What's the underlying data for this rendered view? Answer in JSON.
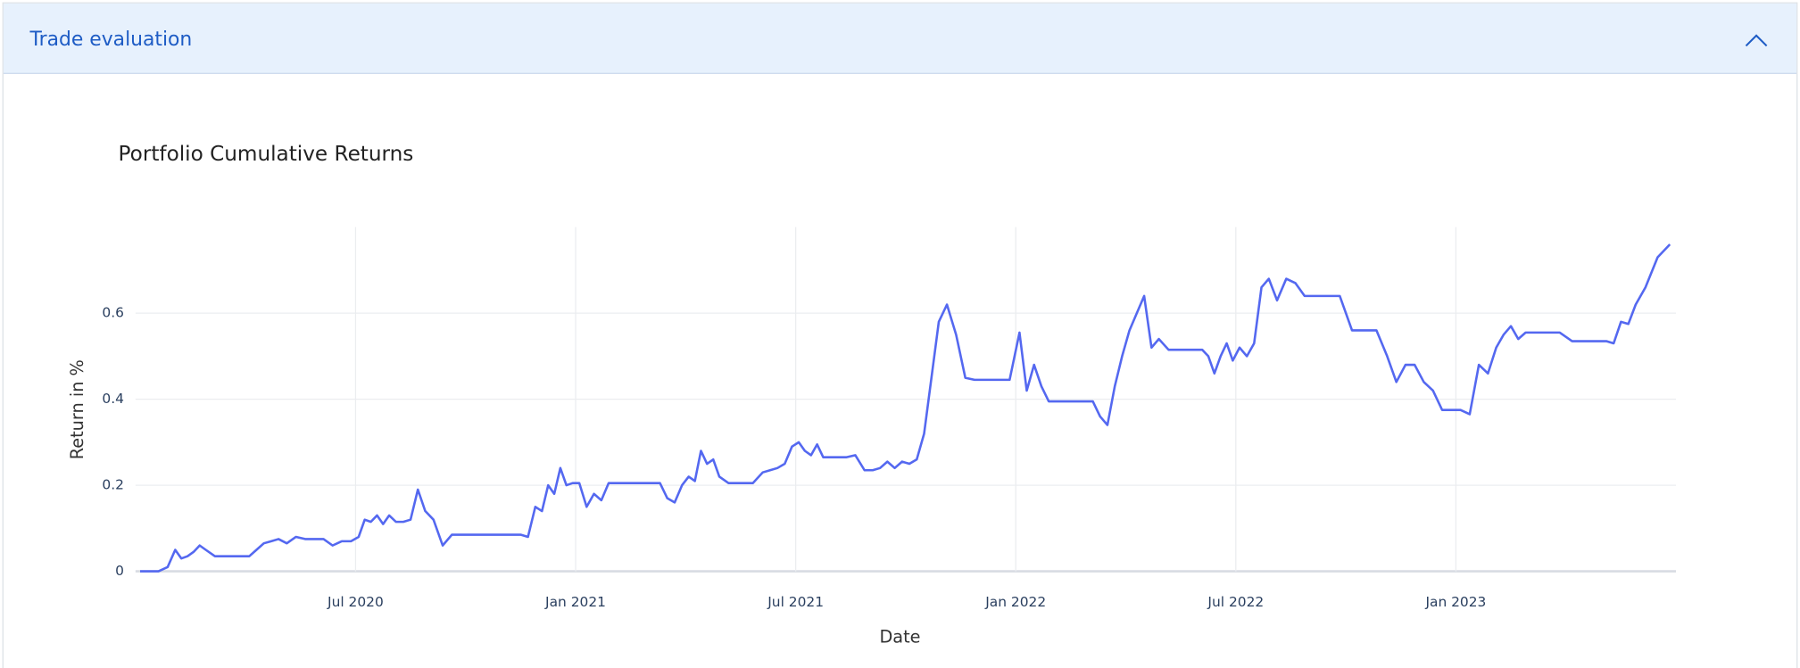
{
  "header": {
    "title": "Trade evaluation"
  },
  "chart_data": {
    "type": "line",
    "title": "Portfolio Cumulative Returns",
    "xlabel": "Date",
    "ylabel": "Return in %",
    "color": "#5468f0",
    "grid": true,
    "xlim": [
      "2020-01",
      "2023-06"
    ],
    "ylim": [
      0,
      0.8
    ],
    "xticks": [
      {
        "value": "2020-07",
        "label": "Jul 2020"
      },
      {
        "value": "2021-01",
        "label": "Jan 2021"
      },
      {
        "value": "2021-07",
        "label": "Jul 2021"
      },
      {
        "value": "2022-01",
        "label": "Jan 2022"
      },
      {
        "value": "2022-07",
        "label": "Jul 2022"
      },
      {
        "value": "2023-01",
        "label": "Jan 2023"
      }
    ],
    "yticks": [
      0,
      0.2,
      0.4,
      0.6
    ],
    "x": [
      "2020-01",
      "2020-01",
      "2020-01",
      "2020-01",
      "2020-02",
      "2020-02",
      "2020-02",
      "2020-02",
      "2020-02",
      "2020-02",
      "2020-03",
      "2020-03",
      "2020-03",
      "2020-04",
      "2020-04",
      "2020-04",
      "2020-04",
      "2020-04",
      "2020-05",
      "2020-05",
      "2020-05",
      "2020-05",
      "2020-06",
      "2020-06",
      "2020-06",
      "2020-06",
      "2020-07",
      "2020-07",
      "2020-07",
      "2020-07",
      "2020-07",
      "2020-07",
      "2020-08",
      "2020-08",
      "2020-08",
      "2020-08",
      "2020-08",
      "2020-09",
      "2020-09",
      "2020-09",
      "2020-09",
      "2020-10",
      "2020-10",
      "2020-10",
      "2020-11",
      "2020-11",
      "2020-11",
      "2020-11",
      "2020-11",
      "2020-12",
      "2020-12",
      "2020-12",
      "2020-12",
      "2020-12",
      "2020-12",
      "2021-01",
      "2021-01",
      "2021-01",
      "2021-01",
      "2021-01",
      "2021-02",
      "2021-02",
      "2021-02",
      "2021-03",
      "2021-03",
      "2021-03",
      "2021-03",
      "2021-03",
      "2021-04",
      "2021-04",
      "2021-04",
      "2021-04",
      "2021-04",
      "2021-04",
      "2021-05",
      "2021-05",
      "2021-05",
      "2021-06",
      "2021-06",
      "2021-06",
      "2021-06",
      "2021-06",
      "2021-07",
      "2021-07",
      "2021-07",
      "2021-07",
      "2021-07",
      "2021-07",
      "2021-08",
      "2021-08",
      "2021-08",
      "2021-08",
      "2021-09",
      "2021-09",
      "2021-09",
      "2021-09",
      "2021-09",
      "2021-10",
      "2021-10",
      "2021-10",
      "2021-10",
      "2021-10",
      "2021-11",
      "2021-11",
      "2021-11",
      "2021-11",
      "2021-12",
      "2021-12",
      "2021-12",
      "2022-01",
      "2022-01",
      "2022-01",
      "2022-01",
      "2022-01",
      "2022-02",
      "2022-02",
      "2022-02",
      "2022-03",
      "2022-03",
      "2022-03",
      "2022-03",
      "2022-03",
      "2022-04",
      "2022-04",
      "2022-04",
      "2022-04",
      "2022-04",
      "2022-05",
      "2022-05",
      "2022-05",
      "2022-06",
      "2022-06",
      "2022-06",
      "2022-06",
      "2022-06",
      "2022-06",
      "2022-07",
      "2022-07",
      "2022-07",
      "2022-07",
      "2022-07",
      "2022-08",
      "2022-08",
      "2022-08",
      "2022-08",
      "2022-09",
      "2022-09",
      "2022-09",
      "2022-10",
      "2022-10",
      "2022-10",
      "2022-11",
      "2022-11",
      "2022-11",
      "2022-11",
      "2022-12",
      "2022-12",
      "2022-12",
      "2022-12",
      "2023-01",
      "2023-01",
      "2023-01",
      "2023-01",
      "2023-02",
      "2023-02",
      "2023-02",
      "2023-02",
      "2023-02",
      "2023-03",
      "2023-03",
      "2023-03",
      "2023-04",
      "2023-04",
      "2023-04",
      "2023-05",
      "2023-05",
      "2023-05",
      "2023-05",
      "2023-05",
      "2023-06",
      "2023-06",
      "2023-06"
    ],
    "values": [
      0,
      0,
      0,
      0.01,
      0.05,
      0.03,
      0.035,
      0.045,
      0.06,
      0.05,
      0.035,
      0.035,
      0.035,
      0.035,
      0.05,
      0.065,
      0.07,
      0.075,
      0.065,
      0.08,
      0.075,
      0.075,
      0.075,
      0.06,
      0.07,
      0.07,
      0.08,
      0.12,
      0.115,
      0.13,
      0.11,
      0.13,
      0.115,
      0.115,
      0.12,
      0.19,
      0.14,
      0.12,
      0.06,
      0.085,
      0.085,
      0.085,
      0.085,
      0.085,
      0.085,
      0.085,
      0.085,
      0.08,
      0.15,
      0.14,
      0.2,
      0.18,
      0.24,
      0.2,
      0.205,
      0.205,
      0.15,
      0.18,
      0.165,
      0.205,
      0.205,
      0.205,
      0.205,
      0.205,
      0.205,
      0.17,
      0.16,
      0.2,
      0.22,
      0.21,
      0.28,
      0.25,
      0.26,
      0.22,
      0.205,
      0.205,
      0.205,
      0.23,
      0.235,
      0.24,
      0.25,
      0.29,
      0.3,
      0.28,
      0.27,
      0.295,
      0.265,
      0.265,
      0.265,
      0.265,
      0.27,
      0.235,
      0.235,
      0.24,
      0.255,
      0.24,
      0.255,
      0.25,
      0.26,
      0.32,
      0.45,
      0.58,
      0.62,
      0.55,
      0.45,
      0.445,
      0.445,
      0.445,
      0.445,
      0.555,
      0.42,
      0.48,
      0.43,
      0.395,
      0.395,
      0.395,
      0.395,
      0.395,
      0.36,
      0.34,
      0.43,
      0.5,
      0.56,
      0.6,
      0.64,
      0.52,
      0.54,
      0.515,
      0.515,
      0.515,
      0.515,
      0.5,
      0.46,
      0.5,
      0.53,
      0.49,
      0.52,
      0.5,
      0.53,
      0.66,
      0.68,
      0.63,
      0.68,
      0.67,
      0.64,
      0.64,
      0.64,
      0.64,
      0.56,
      0.56,
      0.56,
      0.5,
      0.44,
      0.48,
      0.48,
      0.44,
      0.42,
      0.375,
      0.375,
      0.375,
      0.365,
      0.48,
      0.46,
      0.52,
      0.55,
      0.57,
      0.54,
      0.555,
      0.555,
      0.555,
      0.555,
      0.535,
      0.535,
      0.535,
      0.535,
      0.53,
      0.58,
      0.575,
      0.62,
      0.66,
      0.73,
      0.76
    ]
  }
}
